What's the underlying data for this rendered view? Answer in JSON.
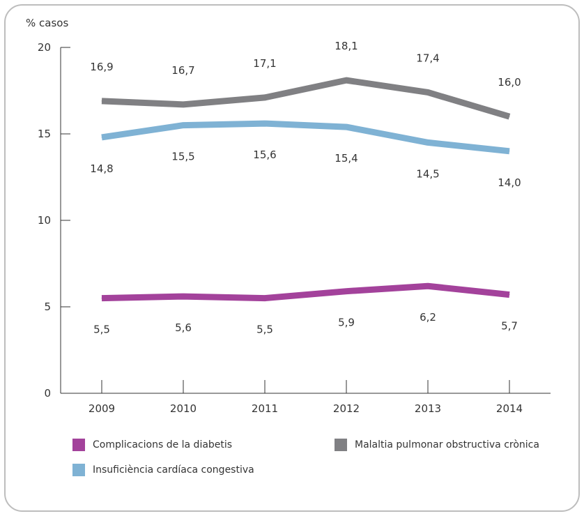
{
  "chart_data": {
    "type": "line",
    "ylabel": "% casos",
    "ylim": [
      0,
      20
    ],
    "yticks": [
      0,
      5,
      10,
      15,
      20
    ],
    "categories": [
      "2009",
      "2010",
      "2011",
      "2012",
      "2013",
      "2014"
    ],
    "grid": false,
    "legend_position": "bottom",
    "series": [
      {
        "name": "Malaltia pulmonar obstructiva crònica",
        "color": "#808083",
        "values": [
          16.9,
          16.7,
          17.1,
          18.1,
          17.4,
          16.0
        ],
        "labels": [
          "16,9",
          "16,7",
          "17,1",
          "18,1",
          "17,4",
          "16,0"
        ],
        "label_position": "above"
      },
      {
        "name": "Insuficiència cardíaca congestiva",
        "color": "#7fb2d4",
        "values": [
          14.8,
          15.5,
          15.6,
          15.4,
          14.5,
          14.0
        ],
        "labels": [
          "14,8",
          "15,5",
          "15,6",
          "15,4",
          "14,5",
          "14,0"
        ],
        "label_position": "below"
      },
      {
        "name": "Complicacions de la diabetis",
        "color": "#a3429b",
        "values": [
          5.5,
          5.6,
          5.5,
          5.9,
          6.2,
          5.7
        ],
        "labels": [
          "5,5",
          "5,6",
          "5,5",
          "5,9",
          "6,2",
          "5,7"
        ],
        "label_position": "below"
      }
    ]
  },
  "legend": [
    {
      "name": "Complicacions de la diabetis",
      "color": "#a3429b"
    },
    {
      "name": "Malaltia pulmonar obstructiva crònica",
      "color": "#808083"
    },
    {
      "name": "Insuficiència cardíaca congestiva",
      "color": "#7fb2d4"
    }
  ]
}
